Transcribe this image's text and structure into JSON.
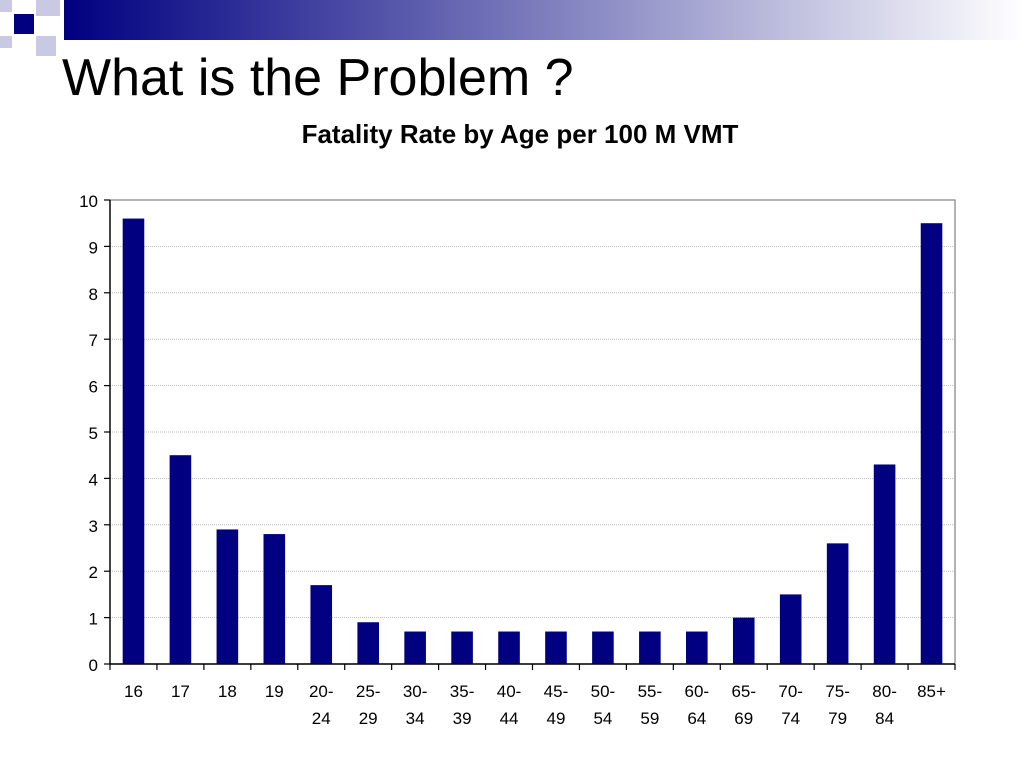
{
  "slide": {
    "title": "What is the Problem ?"
  },
  "colors": {
    "accent": "#000080",
    "bar": "#000080",
    "deco_light": "#c9c9e4",
    "grid": "#b0b0b0"
  },
  "chart_data": {
    "type": "bar",
    "title": "Fatality Rate by Age per 100 M VMT",
    "xlabel": "",
    "ylabel": "",
    "categories": [
      [
        "16"
      ],
      [
        "17"
      ],
      [
        "18"
      ],
      [
        "19"
      ],
      [
        "20-",
        "24"
      ],
      [
        "25-",
        "29"
      ],
      [
        "30-",
        "34"
      ],
      [
        "35-",
        "39"
      ],
      [
        "40-",
        "44"
      ],
      [
        "45-",
        "49"
      ],
      [
        "50-",
        "54"
      ],
      [
        "55-",
        "59"
      ],
      [
        "60-",
        "64"
      ],
      [
        "65-",
        "69"
      ],
      [
        "70-",
        "74"
      ],
      [
        "75-",
        "79"
      ],
      [
        "80-",
        "84"
      ],
      [
        "85+"
      ]
    ],
    "values": [
      9.6,
      4.5,
      2.9,
      2.8,
      1.7,
      0.9,
      0.7,
      0.7,
      0.7,
      0.7,
      0.7,
      0.7,
      0.7,
      1.0,
      1.5,
      2.6,
      4.3,
      9.5
    ],
    "ylim": [
      0,
      10
    ],
    "yticks": [
      "0",
      "1",
      "2",
      "3",
      "4",
      "5",
      "6",
      "7",
      "8",
      "9",
      "10"
    ],
    "grid": true,
    "legend": "none"
  }
}
